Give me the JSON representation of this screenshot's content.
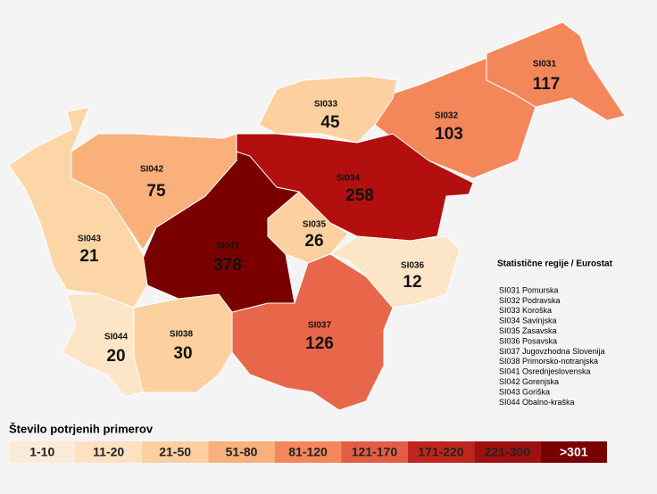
{
  "map": {
    "regions": [
      {
        "code": "SI031",
        "value": 117,
        "color": "#f4875a"
      },
      {
        "code": "SI032",
        "value": 103,
        "color": "#f4875a"
      },
      {
        "code": "SI033",
        "value": 45,
        "color": "#fdd09f"
      },
      {
        "code": "SI034",
        "value": 258,
        "color": "#b30f0f"
      },
      {
        "code": "SI035",
        "value": 26,
        "color": "#fdd09f"
      },
      {
        "code": "SI036",
        "value": 12,
        "color": "#fde5c7"
      },
      {
        "code": "SI037",
        "value": 126,
        "color": "#e8674a"
      },
      {
        "code": "SI038",
        "value": 30,
        "color": "#fdd09f"
      },
      {
        "code": "SI041",
        "value": 378,
        "color": "#7a0000"
      },
      {
        "code": "SI042",
        "value": 75,
        "color": "#f9b07a"
      },
      {
        "code": "SI043",
        "value": 21,
        "color": "#fdd6a8"
      },
      {
        "code": "SI044",
        "value": 20,
        "color": "#fde5c7"
      }
    ],
    "region_list_title": "Statistične regije / Eurostat",
    "region_list": [
      "SI031 Pomurska",
      "SI032 Podravska",
      "SI033 Koroška",
      "SI034 Savinjska",
      "SI035 Zasavska",
      "SI036 Posavska",
      "SI037 Jugovzhodna Slovenija",
      "SI038 Primorsko-notranjska",
      "SI041 Osrednjeslovenska",
      "SI042 Gorenjska",
      "SI043 Goriška",
      "SI044 Obalno-kraška"
    ],
    "legend_title": "Število potrjenih primerov",
    "legend": [
      {
        "label": "1-10",
        "color": "#fdebd9"
      },
      {
        "label": "11-20",
        "color": "#fde1c0"
      },
      {
        "label": "21-50",
        "color": "#fdcfa0"
      },
      {
        "label": "51-80",
        "color": "#f9b07a"
      },
      {
        "label": "81-120",
        "color": "#f4875a"
      },
      {
        "label": "121-170",
        "color": "#e35d45"
      },
      {
        "label": "171-220",
        "color": "#c0251d"
      },
      {
        "label": "221-300",
        "color": "#a11010"
      },
      {
        "label": ">301",
        "color": "#7a0000"
      }
    ]
  }
}
